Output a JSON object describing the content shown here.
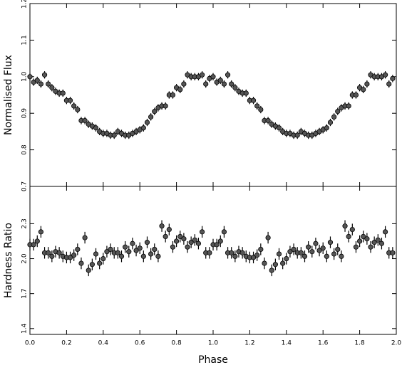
{
  "chart_data": [
    {
      "type": "scatter",
      "ylabel": "Normalised  Flux",
      "x": [
        0,
        0.02,
        0.04,
        0.06,
        0.08,
        0.1,
        0.12,
        0.14,
        0.16,
        0.18,
        0.2,
        0.22,
        0.24,
        0.26,
        0.28,
        0.3,
        0.32,
        0.34,
        0.36,
        0.38,
        0.4,
        0.42,
        0.44,
        0.46,
        0.48,
        0.5,
        0.52,
        0.54,
        0.56,
        0.58,
        0.6,
        0.62,
        0.64,
        0.66,
        0.68,
        0.7,
        0.72,
        0.74,
        0.76,
        0.78,
        0.8,
        0.82,
        0.84,
        0.86,
        0.88,
        0.9,
        0.92,
        0.94,
        0.96,
        0.98,
        1,
        1.02,
        1.04,
        1.06,
        1.08,
        1.1,
        1.12,
        1.14,
        1.16,
        1.18,
        1.2,
        1.22,
        1.24,
        1.26,
        1.28,
        1.3,
        1.32,
        1.34,
        1.36,
        1.38,
        1.4,
        1.42,
        1.44,
        1.46,
        1.48,
        1.5,
        1.52,
        1.54,
        1.56,
        1.58,
        1.6,
        1.62,
        1.64,
        1.66,
        1.68,
        1.7,
        1.72,
        1.74,
        1.76,
        1.78,
        1.8,
        1.82,
        1.84,
        1.86,
        1.88,
        1.9,
        1.92,
        1.94,
        1.96,
        1.98
      ],
      "series": [
        {
          "color": "#555555",
          "error": 0.01,
          "values": [
            1.0,
            0.985,
            0.99,
            0.98,
            1.005,
            0.98,
            0.97,
            0.96,
            0.955,
            0.955,
            0.935,
            0.935,
            0.92,
            0.91,
            0.88,
            0.88,
            0.87,
            0.865,
            0.86,
            0.85,
            0.845,
            0.845,
            0.84,
            0.84,
            0.85,
            0.845,
            0.84,
            0.84,
            0.845,
            0.85,
            0.855,
            0.86,
            0.875,
            0.89,
            0.905,
            0.915,
            0.92,
            0.92,
            0.95,
            0.95,
            0.97,
            0.965,
            0.98,
            1.005,
            1.0,
            1.0,
            1.0,
            1.005,
            0.98,
            0.995,
            1.0,
            0.985,
            0.99,
            0.98,
            1.005,
            0.98,
            0.97,
            0.96,
            0.955,
            0.955,
            0.935,
            0.935,
            0.92,
            0.91,
            0.88,
            0.88,
            0.87,
            0.865,
            0.86,
            0.85,
            0.845,
            0.845,
            0.84,
            0.84,
            0.85,
            0.845,
            0.84,
            0.84,
            0.845,
            0.85,
            0.855,
            0.86,
            0.875,
            0.89,
            0.905,
            0.915,
            0.92,
            0.92,
            0.95,
            0.95,
            0.97,
            0.965,
            0.98,
            1.005,
            1.0,
            1.0,
            1.0,
            1.005,
            0.98,
            0.995
          ]
        }
      ],
      "xlim": [
        0,
        2
      ],
      "ylim": [
        0.7,
        1.2
      ],
      "yticks": [
        0.7,
        0.8,
        0.9,
        {
          "value": 1.0,
          "label": "1.0"
        },
        1.1,
        {
          "value": 1.2,
          "label": "1.2"
        }
      ]
    },
    {
      "type": "scatter",
      "ylabel": "Hardness  Ratio",
      "xlabel": "Phase",
      "x": [
        0,
        0.02,
        0.04,
        0.06,
        0.08,
        0.1,
        0.12,
        0.14,
        0.16,
        0.18,
        0.2,
        0.22,
        0.24,
        0.26,
        0.28,
        0.3,
        0.32,
        0.34,
        0.36,
        0.38,
        0.4,
        0.42,
        0.44,
        0.46,
        0.48,
        0.5,
        0.52,
        0.54,
        0.56,
        0.58,
        0.6,
        0.62,
        0.64,
        0.66,
        0.68,
        0.7,
        0.72,
        0.74,
        0.76,
        0.78,
        0.8,
        0.82,
        0.84,
        0.86,
        0.88,
        0.9,
        0.92,
        0.94,
        0.96,
        0.98,
        1,
        1.02,
        1.04,
        1.06,
        1.08,
        1.1,
        1.12,
        1.14,
        1.16,
        1.18,
        1.2,
        1.22,
        1.24,
        1.26,
        1.28,
        1.3,
        1.32,
        1.34,
        1.36,
        1.38,
        1.4,
        1.42,
        1.44,
        1.46,
        1.48,
        1.5,
        1.52,
        1.54,
        1.56,
        1.58,
        1.6,
        1.62,
        1.64,
        1.66,
        1.68,
        1.7,
        1.72,
        1.74,
        1.76,
        1.78,
        1.8,
        1.82,
        1.84,
        1.86,
        1.88,
        1.9,
        1.92,
        1.94,
        1.96,
        1.98
      ],
      "series": [
        {
          "color": "#555555",
          "error": 0.05,
          "values": [
            2.12,
            2.12,
            2.15,
            2.23,
            2.05,
            2.05,
            2.02,
            2.06,
            2.05,
            2.02,
            2.01,
            2.01,
            2.03,
            2.08,
            1.96,
            2.18,
            1.9,
            1.95,
            2.04,
            1.96,
            2.0,
            2.06,
            2.08,
            2.05,
            2.05,
            2.02,
            2.1,
            2.06,
            2.13,
            2.07,
            2.09,
            2.02,
            2.14,
            2.04,
            2.08,
            2.02,
            2.28,
            2.19,
            2.25,
            2.1,
            2.15,
            2.19,
            2.17,
            2.1,
            2.14,
            2.16,
            2.13,
            2.23,
            2.05,
            2.05,
            2.12,
            2.12,
            2.15,
            2.23,
            2.05,
            2.05,
            2.02,
            2.06,
            2.05,
            2.02,
            2.01,
            2.01,
            2.03,
            2.08,
            1.96,
            2.18,
            1.9,
            1.95,
            2.04,
            1.96,
            2.0,
            2.06,
            2.08,
            2.05,
            2.05,
            2.02,
            2.1,
            2.06,
            2.13,
            2.07,
            2.09,
            2.02,
            2.14,
            2.04,
            2.08,
            2.02,
            2.28,
            2.19,
            2.25,
            2.1,
            2.15,
            2.19,
            2.17,
            2.1,
            2.14,
            2.16,
            2.13,
            2.23,
            2.05,
            2.05
          ]
        }
      ],
      "xlim": [
        0,
        2
      ],
      "ylim": [
        1.35,
        2.62
      ],
      "xticks": [
        {
          "value": 0,
          "label": "0.0"
        },
        0.2,
        0.4,
        0.6,
        0.8,
        {
          "value": 1,
          "label": "1.0"
        },
        1.2,
        1.4,
        1.6,
        1.8,
        {
          "value": 2,
          "label": "2.0"
        }
      ],
      "yticks": [
        1.4,
        1.7,
        {
          "value": 2.0,
          "label": "2.0"
        },
        2.3
      ]
    }
  ]
}
